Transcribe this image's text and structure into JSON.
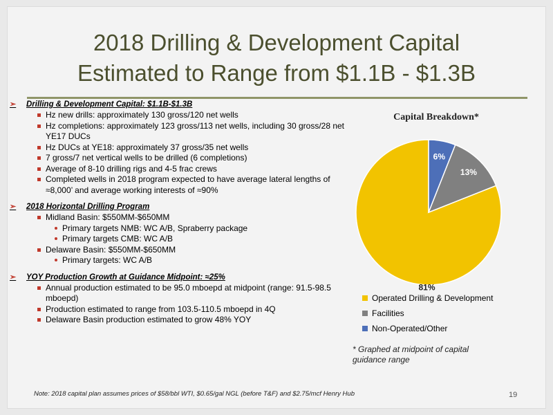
{
  "title": {
    "line1": "2018 Drilling & Development Capital",
    "line2": "Estimated to Range from $1.1B - $1.3B"
  },
  "sections": [
    {
      "heading": "Drilling & Development Capital: $1.1B-$1.3B",
      "items": [
        {
          "text": "Hz new drills: approximately 130 gross/120 net wells"
        },
        {
          "text": "Hz completions: approximately 123 gross/113 net wells, including 30 gross/28 net YE17 DUCs"
        },
        {
          "text": "Hz DUCs at YE18: approximately 37 gross/35 net wells"
        },
        {
          "text": "7 gross/7 net vertical wells to be drilled (6 completions)"
        },
        {
          "text": "Average of 8-10 drilling rigs and 4-5 frac crews"
        },
        {
          "text": "Completed wells in 2018 program expected to have average lateral lengths of ≈8,000’ and average working interests of ≈90%"
        }
      ]
    },
    {
      "heading": "2018 Horizontal Drilling Program",
      "items": [
        {
          "text": "Midland Basin: $550MM-$650MM",
          "sub": [
            "Primary targets NMB: WC A/B, Spraberry package",
            "Primary targets CMB: WC A/B"
          ]
        },
        {
          "text": "Delaware Basin: $550MM-$650MM",
          "sub": [
            "Primary targets: WC A/B"
          ]
        }
      ]
    },
    {
      "heading": "YOY Production Growth at Guidance Midpoint: ≈25%",
      "items": [
        {
          "text": "Annual production estimated to be 95.0 mboepd at midpoint (range: 91.5-98.5 mboepd)"
        },
        {
          "text": "Production estimated to range from 103.5-110.5 mboepd in 4Q"
        },
        {
          "text": "Delaware Basin production estimated to grow 48% YOY"
        }
      ]
    }
  ],
  "chart_data": {
    "type": "pie",
    "title": "Capital Breakdown*",
    "categories": [
      "Operated Drilling & Development",
      "Facilities",
      "Non-Operated/Other"
    ],
    "values": [
      81,
      13,
      6
    ],
    "labels": [
      "81%",
      "13%",
      "6%"
    ],
    "colors": [
      "#f2c300",
      "#808080",
      "#4d6fb8"
    ],
    "legend_placement": "bottom"
  },
  "footnote": "* Graphed at midpoint of capital guidance range",
  "note": "Note: 2018 capital plan assumes prices of $58/bbl WTI, $0.65/gal NGL (before T&F) and $2.75/mcf Henry Hub",
  "page_number": "19"
}
